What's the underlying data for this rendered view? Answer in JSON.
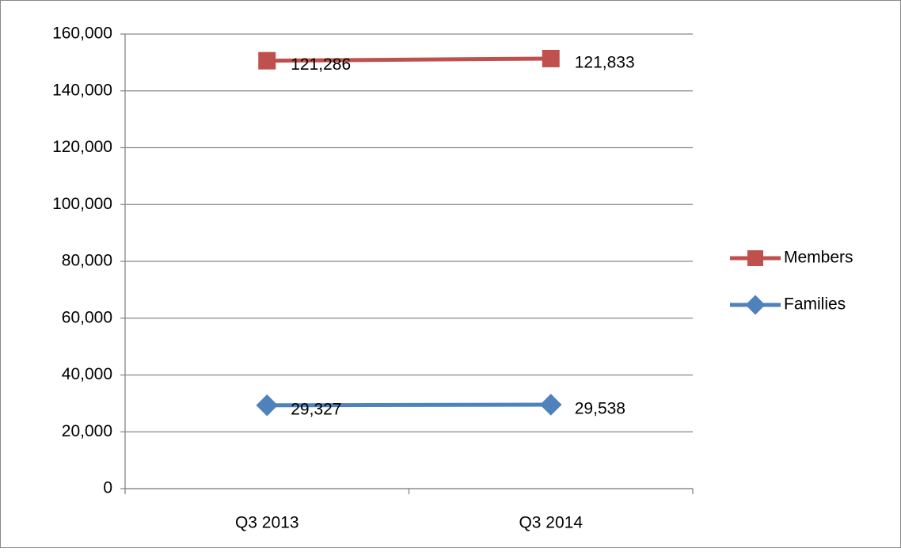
{
  "chart_data": {
    "type": "line",
    "stacked": true,
    "categories": [
      "Q3 2013",
      "Q3 2014"
    ],
    "series": [
      {
        "name": "Families",
        "color": "#4f81bd",
        "marker": "diamond",
        "values": [
          29327,
          29538
        ],
        "value_labels": [
          "29,327",
          "29,538"
        ]
      },
      {
        "name": "Members",
        "color": "#c0504d",
        "marker": "square",
        "values": [
          121286,
          121833
        ],
        "value_labels": [
          "121,286",
          "121,833"
        ]
      }
    ],
    "ylim": [
      0,
      160000
    ],
    "yticks": [
      {
        "value": 0,
        "label": "0"
      },
      {
        "value": 20000,
        "label": "20,000"
      },
      {
        "value": 40000,
        "label": "40,000"
      },
      {
        "value": 60000,
        "label": "60,000"
      },
      {
        "value": 80000,
        "label": "80,000"
      },
      {
        "value": 100000,
        "label": "100,000"
      },
      {
        "value": 120000,
        "label": "120,000"
      },
      {
        "value": 140000,
        "label": "140,000"
      },
      {
        "value": 160000,
        "label": "160,000"
      }
    ],
    "grid": true,
    "legend": "right"
  }
}
